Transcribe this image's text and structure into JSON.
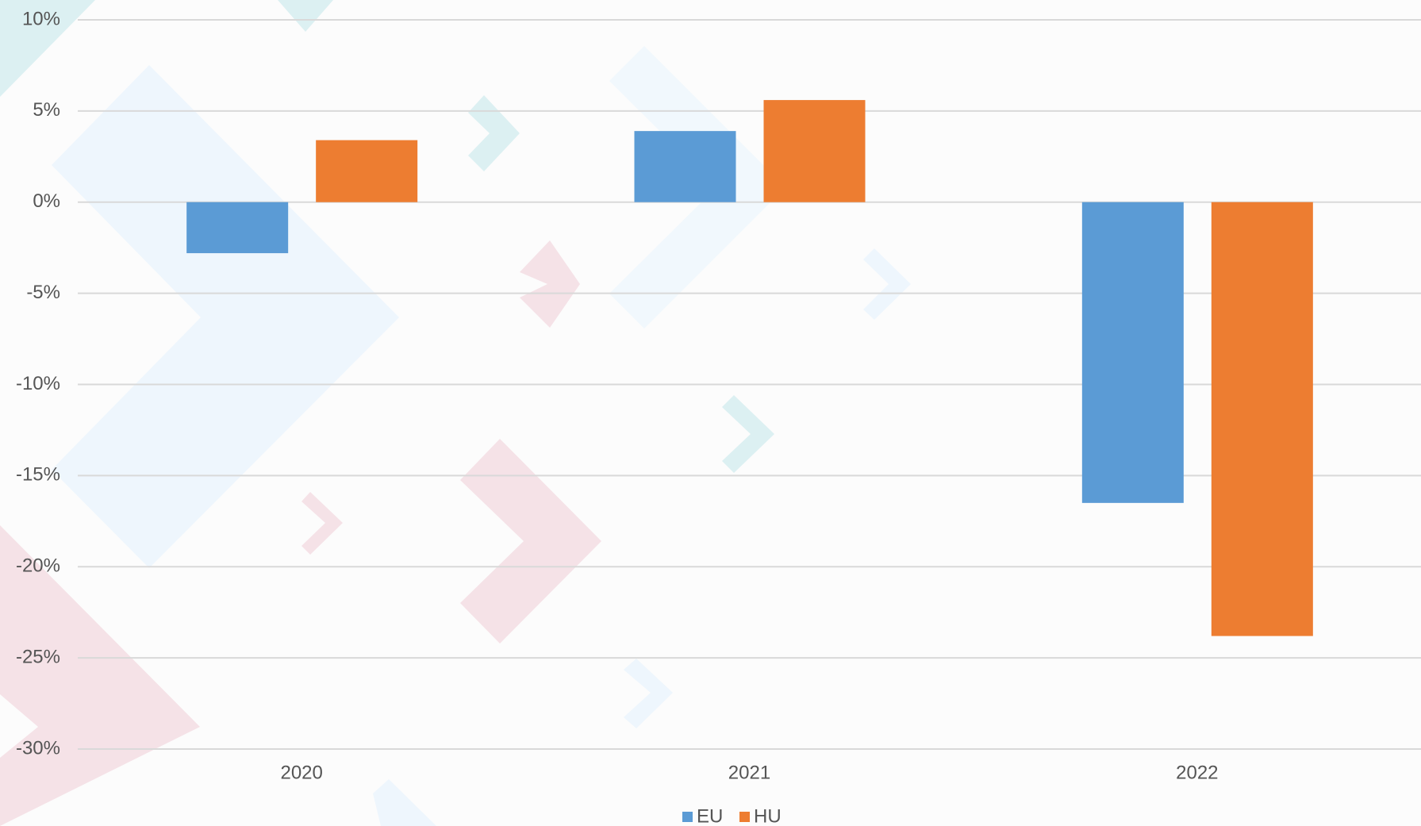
{
  "chart_data": {
    "type": "bar",
    "categories": [
      "2020",
      "2021",
      "2022"
    ],
    "series": [
      {
        "name": "EU",
        "color": "#5b9bd5",
        "values": [
          -2.8,
          3.9,
          -16.5
        ]
      },
      {
        "name": "HU",
        "color": "#ed7d31",
        "values": [
          3.4,
          5.6,
          -23.8
        ]
      }
    ],
    "ylim": [
      -30,
      10
    ],
    "yticks": [
      {
        "value": 10,
        "label": "10%"
      },
      {
        "value": 5,
        "label": "5%"
      },
      {
        "value": 0,
        "label": "0%"
      },
      {
        "value": -5,
        "label": "-5%"
      },
      {
        "value": -10,
        "label": "-10%"
      },
      {
        "value": -15,
        "label": "-15%"
      },
      {
        "value": -20,
        "label": "-20%"
      },
      {
        "value": -25,
        "label": "-25%"
      },
      {
        "value": -30,
        "label": "-30%"
      }
    ],
    "grid": true,
    "legend": "bottom"
  }
}
